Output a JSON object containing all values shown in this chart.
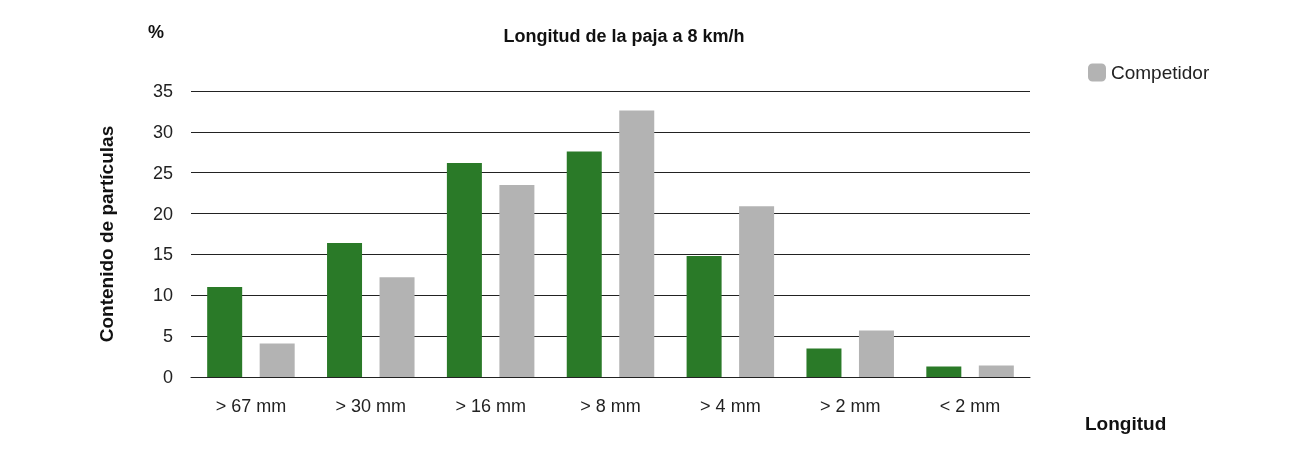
{
  "chart_data": {
    "type": "bar",
    "title": "Longitud de la paja a 8 km/h",
    "ylabel": "Contenido de partículas",
    "xlabel": "Longitud",
    "annotations": [
      "%"
    ],
    "categories": [
      "> 67 mm",
      "> 30 mm",
      "> 16 mm",
      "> 8 mm",
      "> 4 mm",
      "> 2 mm",
      "< 2 mm"
    ],
    "series": [
      {
        "color": "#2a7a28",
        "values": [
          11,
          16.4,
          26.2,
          27.6,
          14.8,
          3.5,
          1.3
        ]
      },
      {
        "name": "Competidor",
        "color": "#b3b3b3",
        "values": [
          4.1,
          12.2,
          23.5,
          32.6,
          20.9,
          5.7,
          1.4
        ]
      }
    ],
    "ylim": [
      0,
      35
    ],
    "yticks": [
      0,
      5,
      10,
      15,
      20,
      25,
      30,
      35
    ],
    "grid": "y",
    "legend": "top right"
  }
}
